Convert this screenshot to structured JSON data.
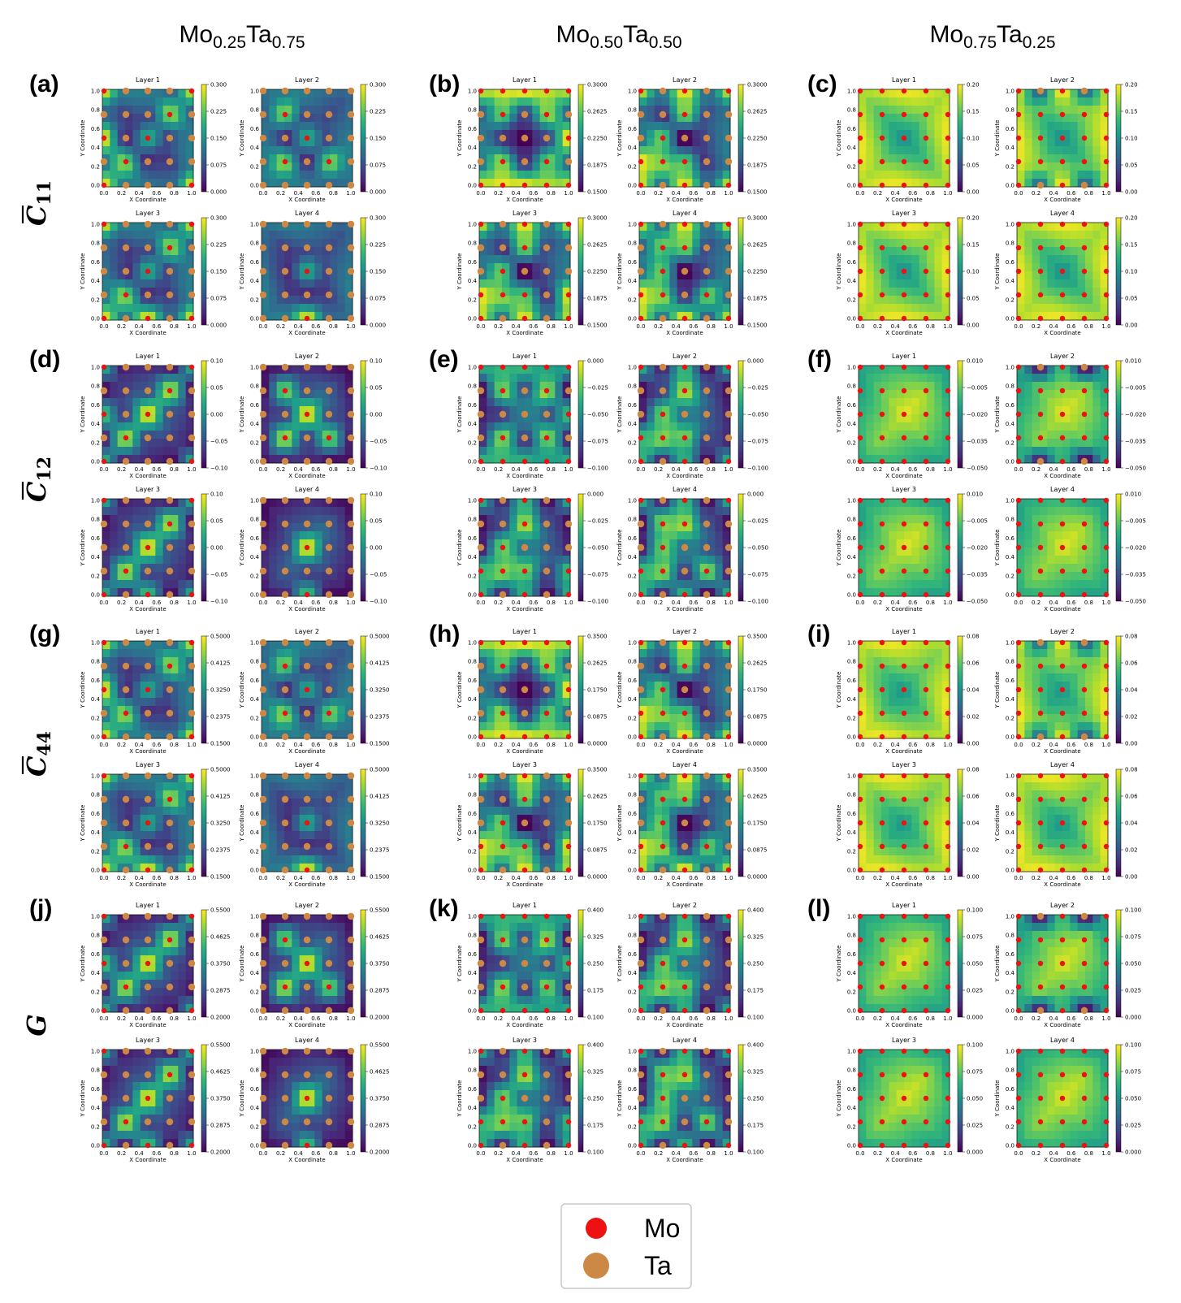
{
  "columns": [
    {
      "base1": "Mo",
      "sub1": "0.25",
      "base2": "Ta",
      "sub2": "0.75"
    },
    {
      "base1": "Mo",
      "sub1": "0.50",
      "base2": "Ta",
      "sub2": "0.50"
    },
    {
      "base1": "Mo",
      "sub1": "0.75",
      "base2": "Ta",
      "sub2": "0.25"
    }
  ],
  "rows": [
    {
      "symbol": "C",
      "sub": "11",
      "bar": true
    },
    {
      "symbol": "C",
      "sub": "12",
      "bar": true
    },
    {
      "symbol": "C",
      "sub": "44",
      "bar": true
    },
    {
      "symbol": "G",
      "sub": "",
      "bar": false
    }
  ],
  "panel_letters": [
    "(a)",
    "(b)",
    "(c)",
    "(d)",
    "(e)",
    "(f)",
    "(g)",
    "(h)",
    "(i)",
    "(j)",
    "(k)",
    "(l)"
  ],
  "axis": {
    "xlabel": "X Coordinate",
    "ylabel": "Y Coordinate",
    "ticks": [
      "0.0",
      "0.2",
      "0.4",
      "0.6",
      "0.8",
      "1.0"
    ]
  },
  "legend": {
    "items": [
      {
        "label": "Mo",
        "color": "#ee1111"
      },
      {
        "label": "Ta",
        "color": "#cc8844"
      }
    ]
  },
  "colormap": "viridis",
  "chart_data": {
    "type": "heatmap",
    "layers": [
      "Layer 1",
      "Layer 2",
      "Layer 3",
      "Layer 4"
    ],
    "x_range": [
      0,
      1
    ],
    "y_range": [
      0,
      1
    ],
    "colorbar_ticks": [
      [
        [
          "0.300",
          "0.225",
          "0.150",
          "0.075",
          "0.000"
        ],
        [
          "0.3000",
          "0.2625",
          "0.2250",
          "0.1875",
          "0.1500"
        ],
        [
          "0.20",
          "0.15",
          "0.10",
          "0.05",
          "0.00"
        ]
      ],
      [
        [
          "0.10",
          "0.05",
          "0.00",
          "−0.05",
          "−0.10"
        ],
        [
          "0.000",
          "−0.025",
          "−0.050",
          "−0.075",
          "−0.100"
        ],
        [
          "0.010",
          "−0.005",
          "−0.020",
          "−0.035",
          "−0.050"
        ]
      ],
      [
        [
          "0.5000",
          "0.4125",
          "0.3250",
          "0.2375",
          "0.1500"
        ],
        [
          "0.3500",
          "0.2625",
          "0.1750",
          "0.0875",
          "0.0000"
        ],
        [
          "0.08",
          "0.06",
          "0.04",
          "0.02",
          "0.00"
        ]
      ],
      [
        [
          "0.5500",
          "0.4625",
          "0.3750",
          "0.2875",
          "0.2000"
        ],
        [
          "0.400",
          "0.325",
          "0.250",
          "0.175",
          "0.100"
        ],
        [
          "0.100",
          "0.075",
          "0.050",
          "0.025",
          "0.000"
        ]
      ]
    ],
    "atoms": [
      [
        "MTTTMTTTMTMTMTTTMTTTMTTTM",
        "TTTTTTMTTTTTMTTTMTMTTTTTT",
        "MTTTMTTTMTTTMTTTMTTTMTMTM",
        "TTTTTTTTTTTTMTTTTTTTTTMTT"
      ],
      [
        "MMMMMTMTMTTTTTMTMTMTMMMMM",
        "MTMTMTTMTTTMTTTMMMTTMTMTM",
        "MTMTMTTMTTTMTTTMMMTMMTMTM",
        "MTMTMTMMTTTMTTTMMTMTMTMTM"
      ],
      [
        "MMMMMMMMMMMMMMMMMMMMMMMMM",
        "MTMTMMMMMMMMMMMMMMMMMTMTM",
        "MMMMMMMMMMMMMMMMMMMMMMMMM",
        "MMMMMMMMMMMMMMMMMMMMMMMMM"
      ]
    ]
  }
}
